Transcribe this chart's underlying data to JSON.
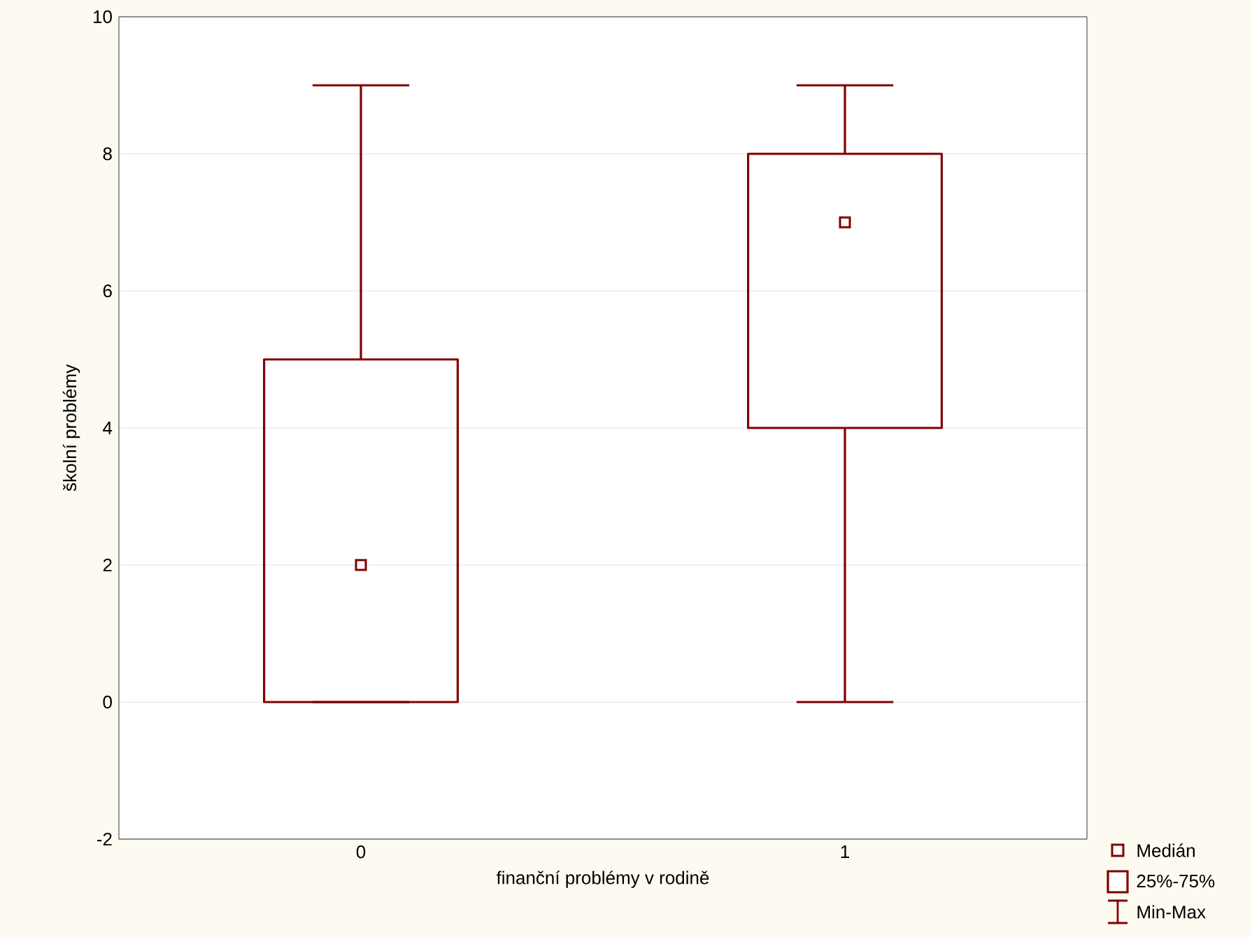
{
  "chart_data": {
    "type": "box",
    "xlabel": "finanční problémy v rodině",
    "ylabel": "školní problémy",
    "categories": [
      "0",
      "1"
    ],
    "boxes": [
      {
        "low": 0,
        "q1": 0,
        "median": 2,
        "q3": 5,
        "high": 9
      },
      {
        "low": 0,
        "q1": 4,
        "median": 7,
        "q3": 8,
        "high": 9
      }
    ],
    "color": "#800000",
    "ylim": [
      -2,
      10
    ],
    "yticks": [
      -2,
      0,
      2,
      4,
      6,
      8,
      10
    ],
    "grid": "y",
    "marker": "square",
    "annotations": [
      "Medián",
      "25%-75%",
      "Min-Max"
    ]
  }
}
